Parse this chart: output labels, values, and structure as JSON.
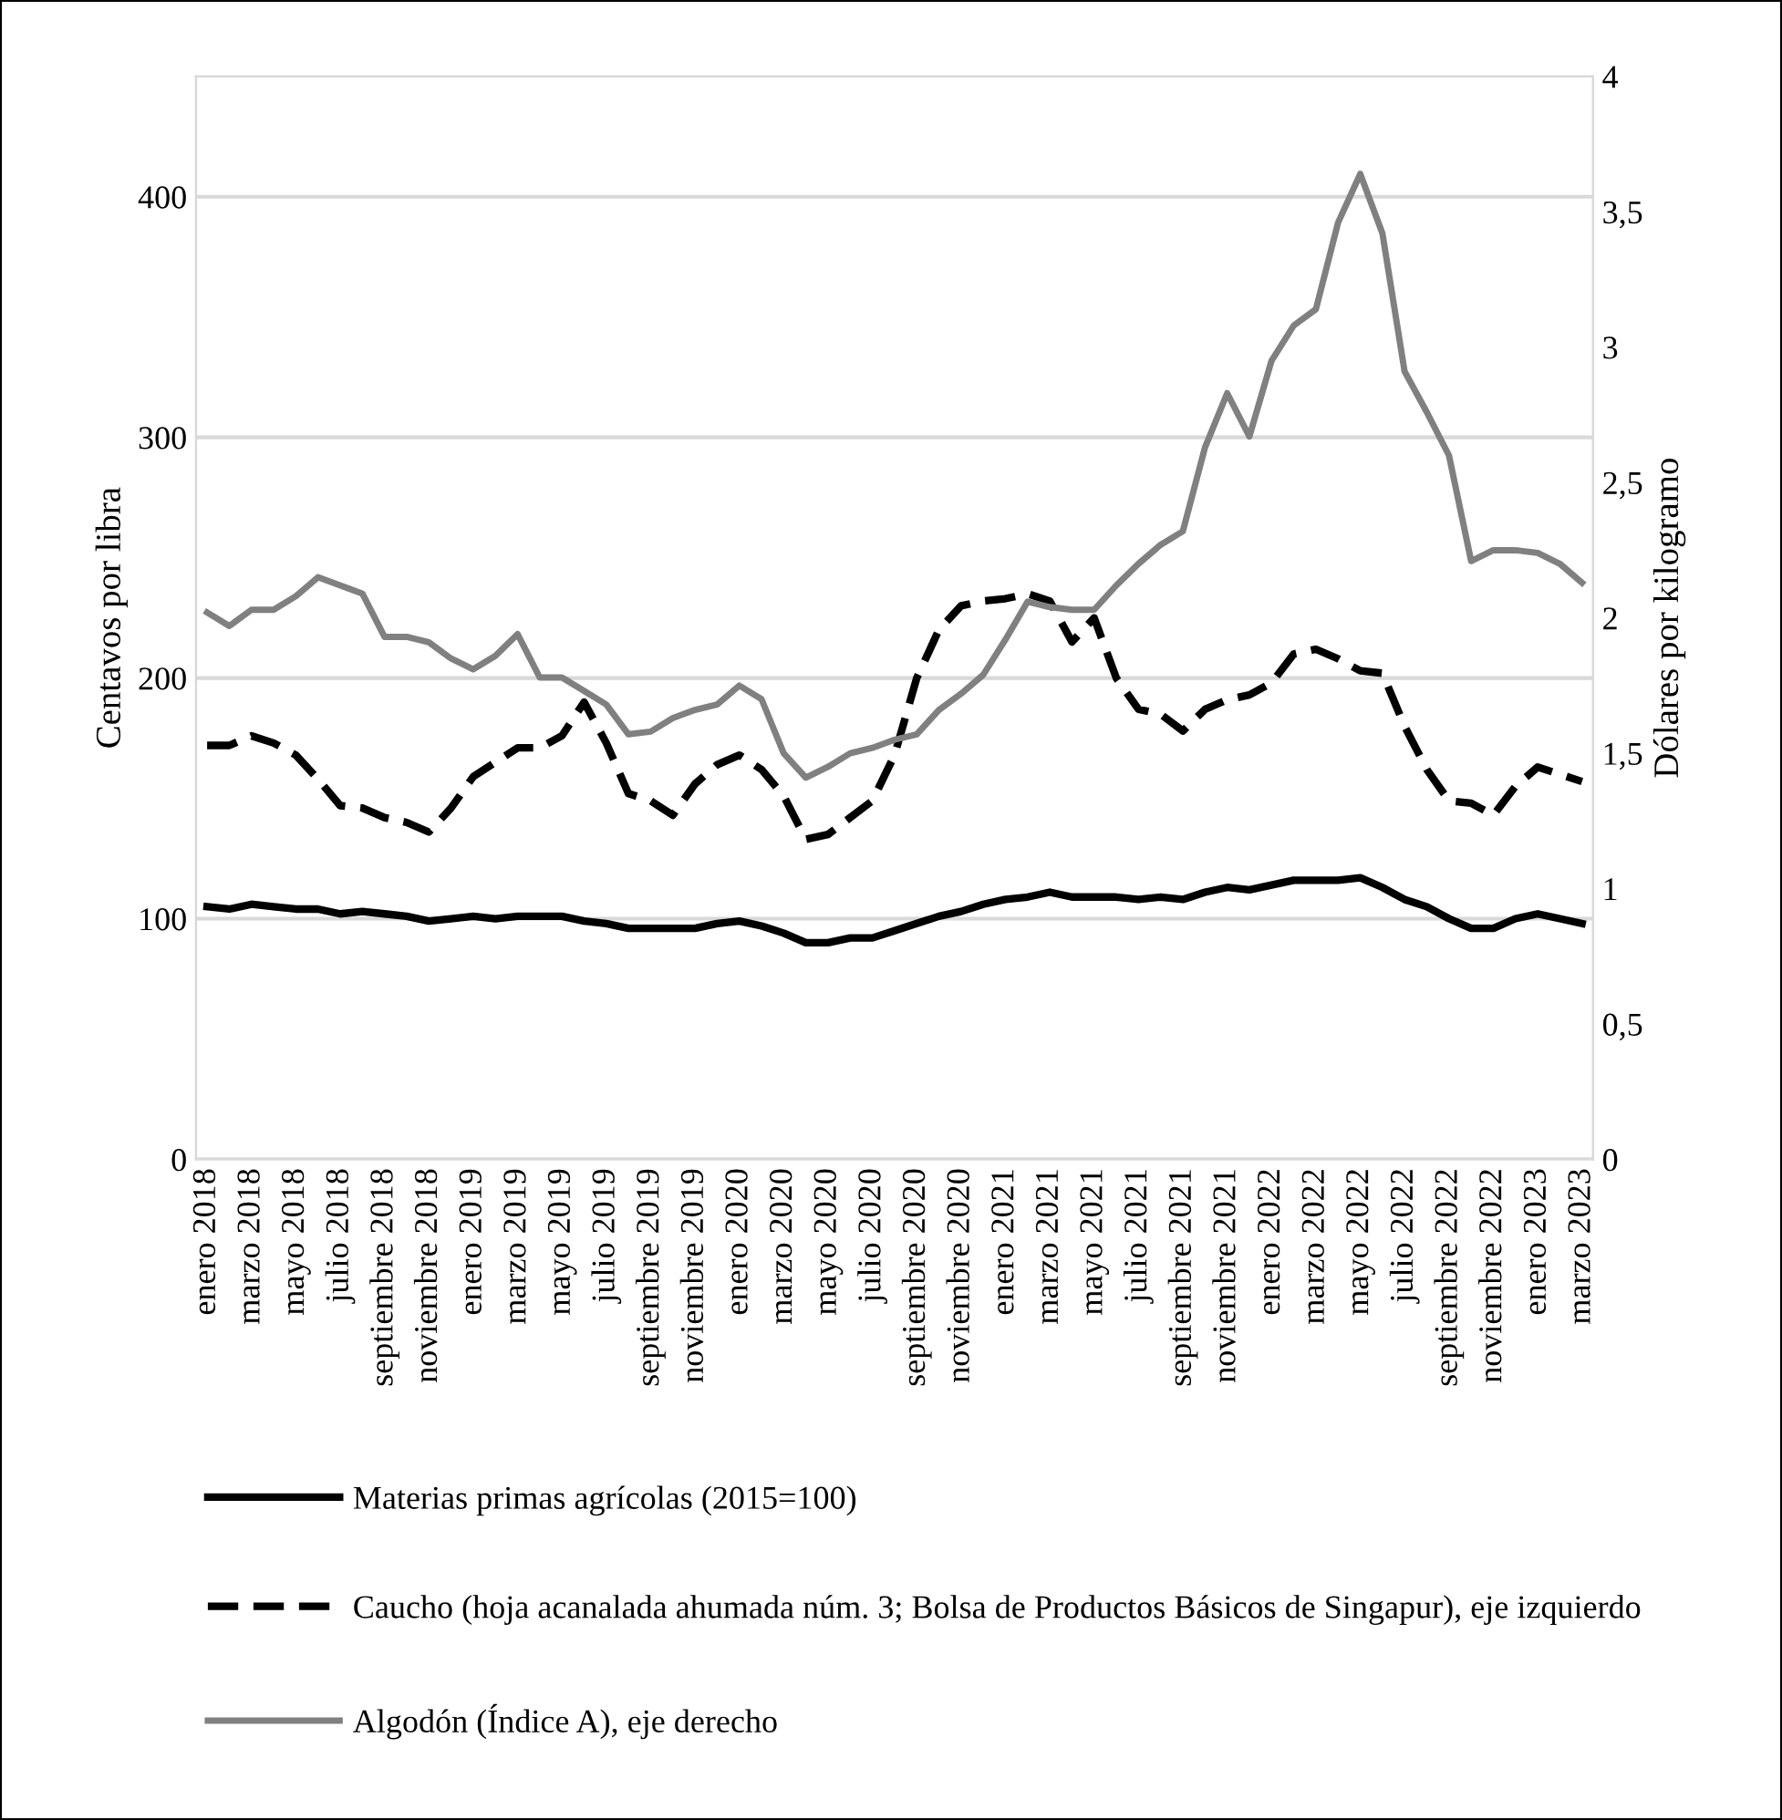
{
  "chart_data": {
    "type": "line",
    "categories": [
      "enero 2018",
      null,
      "marzo 2018",
      null,
      "mayo 2018",
      null,
      "julio 2018",
      null,
      "septiembre 2018",
      null,
      "noviembre 2018",
      null,
      "enero 2019",
      null,
      "marzo 2019",
      null,
      "mayo 2019",
      null,
      "julio 2019",
      null,
      "septiembre 2019",
      null,
      "noviembre 2019",
      null,
      "enero 2020",
      null,
      "marzo 2020",
      null,
      "mayo 2020",
      null,
      "julio 2020",
      null,
      "septiembre 2020",
      null,
      "noviembre 2020",
      null,
      "enero 2021",
      null,
      "marzo 2021",
      null,
      "mayo 2021",
      null,
      "julio 2021",
      null,
      "septiembre 2021",
      null,
      "noviembre 2021",
      null,
      "enero 2022",
      null,
      "marzo 2022",
      null,
      "mayo 2022",
      null,
      "julio 2022",
      null,
      "septiembre 2022",
      null,
      "noviembre 2022",
      null,
      "enero 2023",
      null,
      "marzo 2023"
    ],
    "series": [
      {
        "name": "Materias primas agrícolas (2015=100)",
        "color": "#000000",
        "line_style": "solid",
        "values": [
          105,
          104,
          106,
          105,
          104,
          104,
          102,
          103,
          102,
          101,
          99,
          100,
          101,
          100,
          101,
          101,
          101,
          99,
          98,
          96,
          96,
          96,
          96,
          98,
          99,
          97,
          94,
          90,
          90,
          92,
          92,
          95,
          98,
          101,
          103,
          106,
          108,
          109,
          111,
          109,
          109,
          109,
          108,
          109,
          108,
          111,
          113,
          112,
          114,
          116,
          116,
          116,
          117,
          113,
          108,
          105,
          100,
          96,
          96,
          100,
          102,
          100,
          98
        ]
      },
      {
        "name": "Caucho (hoja acanalada ahumada núm. 3; Bolsa de Productos Básicos de Singapur), eje izquierdo",
        "color": "#000000",
        "line_style": "dashed",
        "values": [
          172,
          172,
          176,
          173,
          168,
          158,
          147,
          146,
          142,
          140,
          136,
          146,
          159,
          165,
          171,
          171,
          176,
          190,
          173,
          152,
          149,
          143,
          156,
          164,
          168,
          162,
          151,
          133,
          135,
          142,
          149,
          168,
          200,
          220,
          230,
          232,
          233,
          235,
          232,
          215,
          225,
          200,
          187,
          185,
          178,
          187,
          191,
          193,
          198,
          210,
          212,
          208,
          203,
          202,
          180,
          162,
          149,
          148,
          143,
          155,
          163,
          160,
          157
        ]
      },
      {
        "name": "Algodón (Índice A), eje derecho",
        "color": "#808080",
        "line_style": "solid",
        "axis": "y2",
        "values": [
          2.02,
          1.97,
          2.03,
          2.03,
          2.08,
          2.15,
          2.12,
          2.09,
          1.93,
          1.93,
          1.91,
          1.85,
          1.81,
          1.86,
          1.94,
          1.78,
          1.78,
          1.73,
          1.68,
          1.57,
          1.58,
          1.63,
          1.66,
          1.68,
          1.75,
          1.7,
          1.5,
          1.41,
          1.45,
          1.5,
          1.52,
          1.55,
          1.57,
          1.66,
          1.72,
          1.79,
          1.92,
          2.06,
          2.04,
          2.03,
          2.03,
          2.12,
          2.2,
          2.27,
          2.32,
          2.63,
          2.83,
          2.67,
          2.95,
          3.08,
          3.14,
          3.46,
          3.64,
          3.42,
          2.91,
          2.76,
          2.6,
          2.21,
          2.25,
          2.25,
          2.24,
          2.2,
          2.13
        ]
      }
    ],
    "ylabel": "Centavos por libra",
    "y2label": "Dólares por kilogramo",
    "ylim": [
      0,
      450
    ],
    "yticks": [
      0,
      100,
      200,
      300,
      400
    ],
    "y2lim": [
      0,
      4
    ],
    "y2ticks": [
      0,
      {
        "value": 0.5,
        "label": "0,5"
      },
      1,
      {
        "value": 1.5,
        "label": "1,5"
      },
      2,
      {
        "value": 2.5,
        "label": "2,5"
      },
      3,
      {
        "value": 3.5,
        "label": "3,5"
      },
      4
    ],
    "grid": "y",
    "legend": "bottom",
    "marker": "none"
  }
}
